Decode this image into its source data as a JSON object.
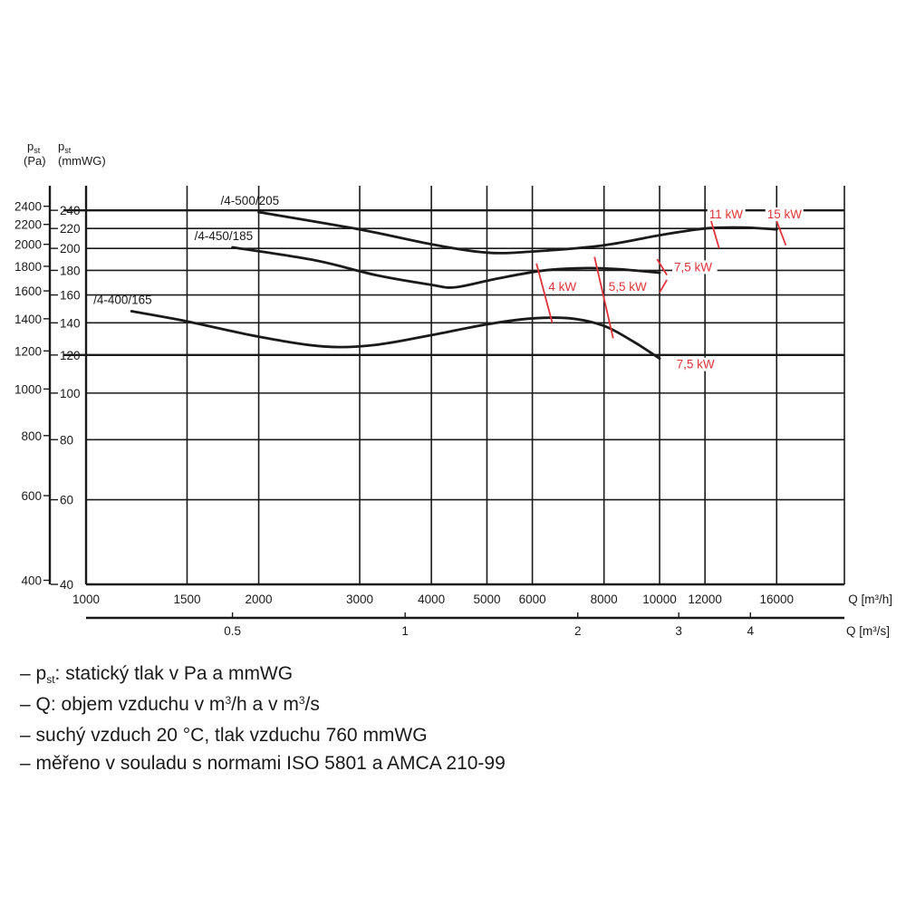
{
  "chart_data": {
    "type": "line",
    "y_axis_pa": {
      "label": "p",
      "label_sub": "st",
      "unit": "(Pa)",
      "ticks": [
        2400,
        2200,
        2000,
        1800,
        1600,
        1400,
        1200,
        1000,
        800,
        600,
        400
      ]
    },
    "y_axis_mmwg": {
      "label": "p",
      "label_sub": "st",
      "unit": "(mmWG)",
      "ticks": [
        240,
        220,
        200,
        180,
        160,
        140,
        120,
        100,
        80,
        60,
        40
      ],
      "range": [
        40,
        270
      ],
      "scale": "log"
    },
    "x_axis_m3h": {
      "label": "Q [m³/h]",
      "ticks": [
        1000,
        1500,
        2000,
        3000,
        4000,
        5000,
        6000,
        8000,
        10000,
        12000,
        16000
      ],
      "range": [
        1000,
        21000
      ],
      "scale": "log"
    },
    "x_axis_m3s": {
      "label": "Q [m³/s]",
      "ticks": [
        0.5,
        1,
        2,
        3,
        4
      ]
    },
    "series": [
      {
        "name": "/4-500/205",
        "points": [
          [
            2000,
            238
          ],
          [
            3000,
            219
          ],
          [
            4000,
            204
          ],
          [
            5000,
            196
          ],
          [
            6000,
            197
          ],
          [
            8000,
            203
          ],
          [
            10000,
            213
          ],
          [
            12000,
            220
          ],
          [
            14000,
            221
          ],
          [
            16000,
            219
          ]
        ]
      },
      {
        "name": "/4-450/185",
        "points": [
          [
            1800,
            201
          ],
          [
            2500,
            189
          ],
          [
            3200,
            176
          ],
          [
            4000,
            168
          ],
          [
            4400,
            166
          ],
          [
            5200,
            173
          ],
          [
            6300,
            180
          ],
          [
            7500,
            182
          ],
          [
            8500,
            181
          ],
          [
            10000,
            178
          ]
        ]
      },
      {
        "name": "/4-400/165",
        "points": [
          [
            1200,
            148
          ],
          [
            1500,
            141
          ],
          [
            2000,
            131
          ],
          [
            2600,
            125
          ],
          [
            3200,
            126
          ],
          [
            4000,
            132
          ],
          [
            5000,
            139
          ],
          [
            6000,
            143
          ],
          [
            7000,
            143
          ],
          [
            8000,
            138
          ],
          [
            9000,
            128
          ],
          [
            10000,
            118
          ]
        ]
      }
    ],
    "power_labels": [
      {
        "text": "11 kW",
        "x": 12200,
        "y": 232
      },
      {
        "text": "15 kW",
        "x": 15400,
        "y": 232
      },
      {
        "text": "7,5 kW",
        "x": 10600,
        "y": 180
      },
      {
        "text": "4 kW",
        "x": 6400,
        "y": 164
      },
      {
        "text": "5,5 kW",
        "x": 8150,
        "y": 164
      },
      {
        "text": "7,5 kW",
        "x": 10700,
        "y": 113
      }
    ],
    "power_ticks": [
      [
        12300,
        228,
        12700,
        200
      ],
      [
        16000,
        228,
        16600,
        203
      ],
      [
        9900,
        190,
        10300,
        176
      ],
      [
        10300,
        172,
        10000,
        162
      ],
      [
        6100,
        186,
        6500,
        140
      ],
      [
        7700,
        192,
        8300,
        130
      ]
    ]
  },
  "notes": [
    {
      "pre": "– p",
      "sub": "st",
      "post": ": statický tlak v Pa a mmWG"
    },
    {
      "pre": "– Q: objem vzduchu v m",
      "sup1": "3",
      "mid": "/h a v m",
      "sup2": "3",
      "post": "/s"
    },
    {
      "text": "– suchý vzduch 20 °C, tlak vzduchu 760 mmWG"
    },
    {
      "text": "– měřeno v souladu s normami ISO 5801 a AMCA 210-99"
    }
  ]
}
